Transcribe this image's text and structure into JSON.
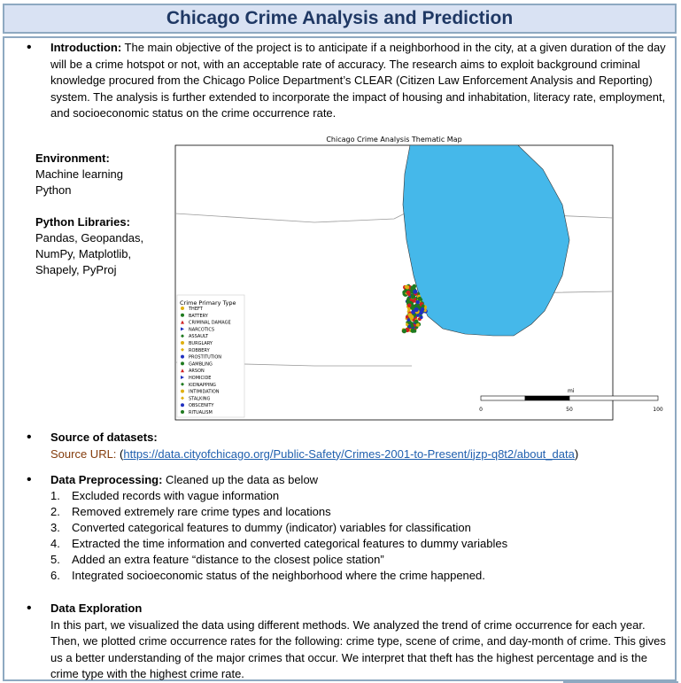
{
  "title": "Chicago Crime Analysis and Prediction",
  "introduction": {
    "heading": "Introduction:",
    "text": "The main objective of the project is to anticipate if a neighborhood in the city, at a given duration of the day will be a crime hotspot or not, with an acceptable rate of accuracy. The research aims to exploit background criminal knowledge procured from the Chicago Police Department’s CLEAR (Citizen Law Enforcement Analysis and Reporting) system. The analysis is further extended to incorporate the impact of housing and inhabitation, literacy rate, employment, and socioeconomic status on the crime occurrence rate."
  },
  "environment": {
    "heading": "Environment:",
    "items": [
      "Machine learning",
      "Python"
    ]
  },
  "libraries": {
    "heading": "Python Libraries:",
    "lines": [
      "Pandas, Geopandas,",
      "NumPy, Matplotlib,",
      "Shapely, PyProj"
    ]
  },
  "map": {
    "title": "Chicago Crime Analysis Thematic Map",
    "legend_title": "Crime Primary Type",
    "legend": [
      {
        "label": "THEFT",
        "shape": "dot",
        "color": "#e0b010"
      },
      {
        "label": "BATTERY",
        "shape": "dot",
        "color": "#1f7a1f"
      },
      {
        "label": "CRIMINAL DAMAGE",
        "shape": "triangle",
        "color": "#d02020"
      },
      {
        "label": "NARCOTICS",
        "shape": "play",
        "color": "#2030c0"
      },
      {
        "label": "ASSAULT",
        "shape": "diamond",
        "color": "#1f7a1f"
      },
      {
        "label": "BURGLARY",
        "shape": "dot",
        "color": "#e0b010"
      },
      {
        "label": "ROBBERY",
        "shape": "diamond",
        "color": "#e0b010"
      },
      {
        "label": "PROSTITUTION",
        "shape": "dot",
        "color": "#2030c0"
      },
      {
        "label": "GAMBLING",
        "shape": "dot",
        "color": "#1f7a1f"
      },
      {
        "label": "ARSON",
        "shape": "triangle",
        "color": "#d02020"
      },
      {
        "label": "HOMICIDE",
        "shape": "play",
        "color": "#2030c0"
      },
      {
        "label": "KIDNAPPING",
        "shape": "diamond",
        "color": "#1f7a1f"
      },
      {
        "label": "INTIMIDATION",
        "shape": "dot",
        "color": "#e0b010"
      },
      {
        "label": "STALKING",
        "shape": "diamond",
        "color": "#e0b010"
      },
      {
        "label": "OBSCENITY",
        "shape": "dot",
        "color": "#2030c0"
      },
      {
        "label": "RITUALISM",
        "shape": "dot",
        "color": "#1f7a1f"
      }
    ],
    "scale_unit": "mi",
    "scale_ticks": [
      "0",
      "50",
      "100"
    ],
    "lake_color": "#45b8ea"
  },
  "source": {
    "heading": "Source of datasets:",
    "url_label": "Source URL: ",
    "url_open": "(",
    "url": "https://data.cityofchicago.org/Public-Safety/Crimes-2001-to-Present/ijzp-q8t2/about_data",
    "url_close": ")"
  },
  "preprocessing": {
    "heading": "Data Preprocessing:",
    "intro": " Cleaned up the data as below",
    "steps": [
      {
        "num": "1.",
        "text": "Excluded records with vague information"
      },
      {
        "num": "2.",
        "text": "Removed extremely rare crime types and locations"
      },
      {
        "num": "3.",
        "text": "Converted categorical features to dummy (indicator) variables for classification"
      },
      {
        "num": "4.",
        "text": "Extracted the time information and converted categorical features to dummy variables"
      },
      {
        "num": "5.",
        "text": "Added an extra feature “distance to the closest police station”"
      },
      {
        "num": "6.",
        "text": "Integrated socioeconomic status of the neighborhood where the crime happened."
      }
    ]
  },
  "exploration": {
    "heading": "Data Exploration",
    "text": "In this part, we visualized the data using different methods. We analyzed the trend of crime occurrence for each year. Then, we plotted crime occurrence rates for the following: crime type, scene of crime, and day-month of crime. This gives us a better understanding of the major crimes that occur. We interpret that theft has the highest percentage and is the crime type with the highest crime rate."
  },
  "bullet_char": "•"
}
